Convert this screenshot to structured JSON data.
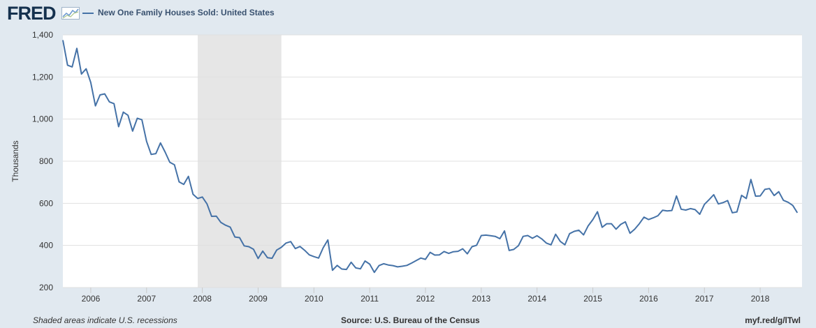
{
  "brand": {
    "logo_text": "FRED"
  },
  "legend": {
    "label": "New One Family Houses Sold: United States",
    "color": "#4572a7"
  },
  "footer": {
    "note": "Shaded areas indicate U.S. recessions",
    "source": "Source: U.S. Bureau of the Census",
    "link": "myf.red/g/lTwl"
  },
  "colors": {
    "background": "#e1e9f0",
    "plot": "#ffffff",
    "recession": "#e6e6e6",
    "line": "#4572a7"
  },
  "chart_data": {
    "type": "line",
    "title": "",
    "xlabel": "",
    "ylabel": "Thousands",
    "ylim": [
      200,
      1400
    ],
    "yticks": [
      200,
      400,
      600,
      800,
      1000,
      1200,
      1400
    ],
    "ytick_labels": [
      "200",
      "400",
      "600",
      "800",
      "1,000",
      "1,200",
      "1,400"
    ],
    "xlim": [
      2005.5,
      2018.75
    ],
    "xticks": [
      2006,
      2007,
      2008,
      2009,
      2010,
      2011,
      2012,
      2013,
      2014,
      2015,
      2016,
      2017,
      2018
    ],
    "xtick_labels": [
      "2006",
      "2007",
      "2008",
      "2009",
      "2010",
      "2011",
      "2012",
      "2013",
      "2014",
      "2015",
      "2016",
      "2017",
      "2018"
    ],
    "grid": true,
    "recessions": [
      [
        2007.917,
        2009.417
      ]
    ],
    "series": [
      {
        "name": "New One Family Houses Sold: United States",
        "start": "2005-07",
        "frequency": "monthly",
        "values": [
          1375,
          1256,
          1248,
          1336,
          1214,
          1239,
          1174,
          1063,
          1115,
          1120,
          1082,
          1073,
          964,
          1033,
          1018,
          943,
          1004,
          997,
          894,
          832,
          836,
          887,
          843,
          795,
          783,
          702,
          690,
          728,
          643,
          623,
          630,
          597,
          538,
          539,
          509,
          496,
          487,
          440,
          437,
          398,
          394,
          382,
          338,
          373,
          342,
          339,
          378,
          391,
          411,
          418,
          385,
          395,
          377,
          355,
          347,
          340,
          389,
          426,
          282,
          305,
          288,
          286,
          320,
          293,
          289,
          326,
          311,
          272,
          304,
          313,
          307,
          304,
          298,
          301,
          305,
          316,
          328,
          340,
          334,
          367,
          354,
          355,
          371,
          362,
          370,
          372,
          384,
          360,
          394,
          401,
          447,
          449,
          446,
          443,
          432,
          469,
          376,
          381,
          399,
          443,
          447,
          434,
          446,
          431,
          411,
          403,
          453,
          419,
          403,
          456,
          467,
          472,
          450,
          493,
          523,
          560,
          486,
          503,
          503,
          477,
          500,
          512,
          458,
          477,
          503,
          534,
          523,
          531,
          541,
          567,
          564,
          566,
          635,
          572,
          568,
          575,
          570,
          548,
          595,
          617,
          641,
          597,
          603,
          613,
          555,
          559,
          638,
          623,
          713,
          634,
          635,
          666,
          670,
          637,
          655,
          614,
          605,
          590,
          555
        ]
      }
    ]
  }
}
